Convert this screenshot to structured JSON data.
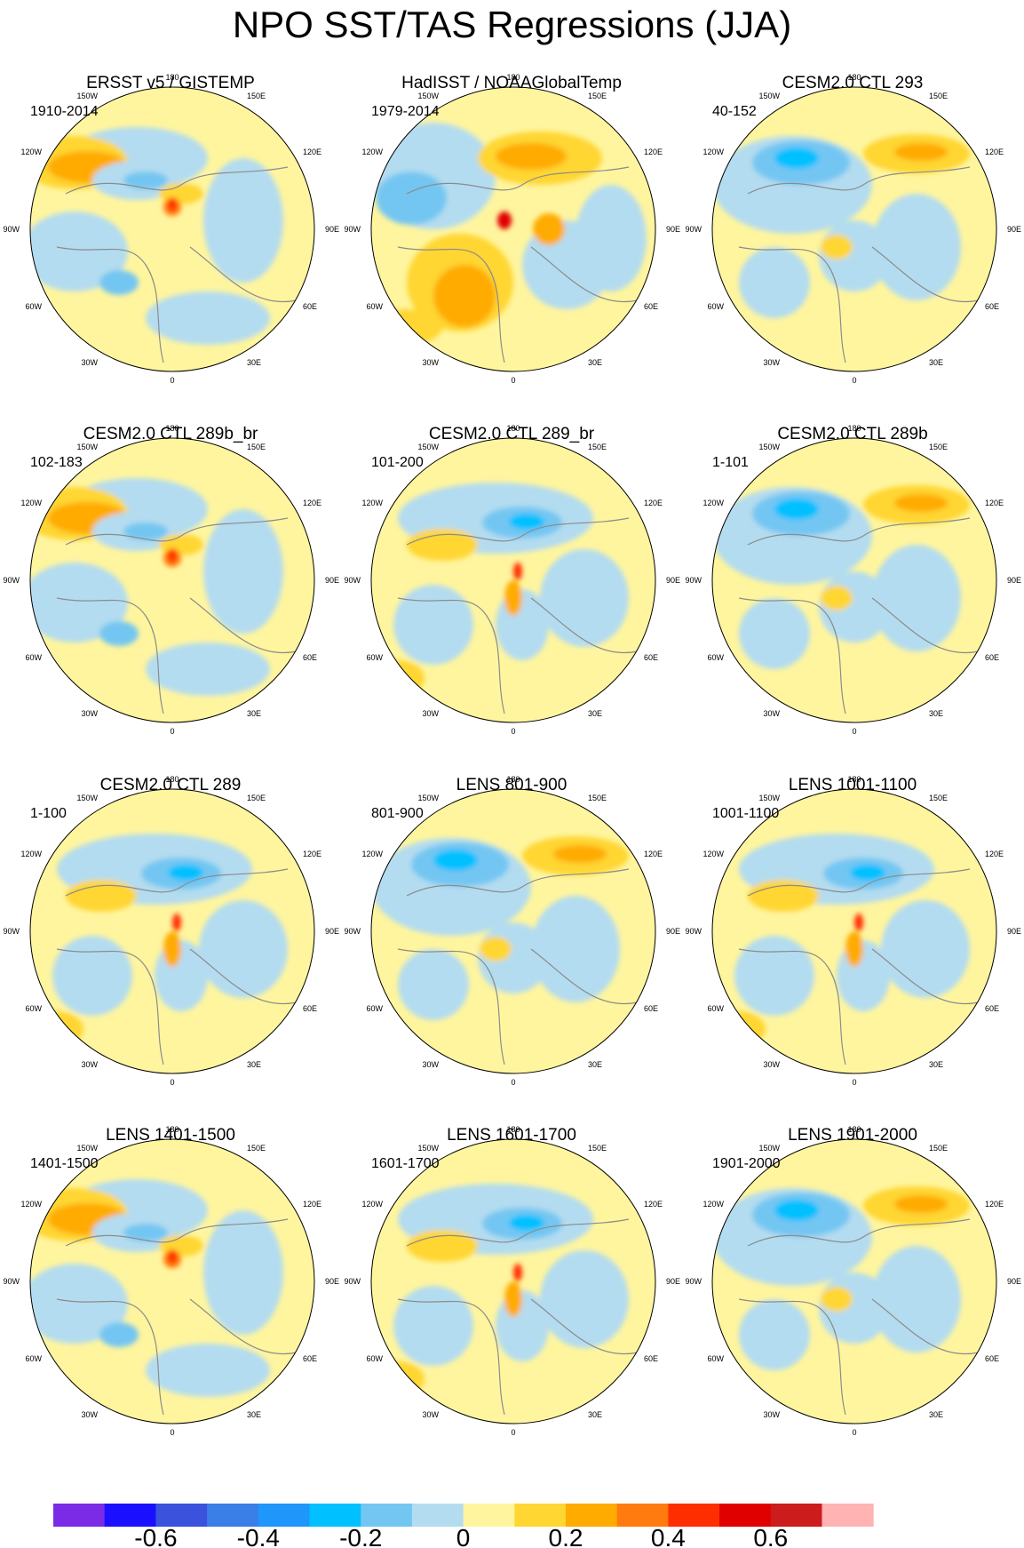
{
  "title": "NPO SST/TAS Regressions (JJA)",
  "colors": {
    "land_outline": "#8c8c8c",
    "circle_outline": "#000000",
    "missing": "#ffffff"
  },
  "palette": [
    "#7b2be6",
    "#1a10ff",
    "#3a52dc",
    "#3a7ee8",
    "#1e96fa",
    "#00c0ff",
    "#73c6f2",
    "#b3dcf0",
    "#fff59e",
    "#ffd632",
    "#ffab00",
    "#ff7b10",
    "#ff2e00",
    "#e00000",
    "#cc1c1c",
    "#ffb3b3"
  ],
  "colorbar": {
    "labels": [
      "-0.6",
      "-0.4",
      "-0.2",
      "0",
      "0.2",
      "0.4",
      "0.6"
    ],
    "levels": [
      -0.7,
      -0.6,
      -0.5,
      -0.4,
      -0.3,
      -0.2,
      -0.1,
      0,
      0.1,
      0.2,
      0.3,
      0.4,
      0.5,
      0.6,
      0.7
    ]
  },
  "axis_labels": {
    "top": "180",
    "bottom": "0",
    "left": "90W",
    "right": "90E",
    "upper_left": "150W",
    "upper_right": "150E",
    "mid_upper_left": "120W",
    "mid_upper_right": "120E",
    "mid_lower_left": "60W",
    "mid_lower_right": "60E",
    "lower_left": "30W",
    "lower_right": "30E"
  },
  "panels": [
    {
      "title": "ERSST v5 / GISTEMP",
      "period": "1910-2014",
      "pattern": 1
    },
    {
      "title": "HadISST / NOAAGlobalTemp",
      "period": "1979-2014",
      "pattern": 2
    },
    {
      "title": "CESM2.0 CTL 293",
      "period": "40-152",
      "pattern": 3
    },
    {
      "title": "CESM2.0 CTL 289b_br",
      "period": "102-183",
      "pattern": 1
    },
    {
      "title": "CESM2.0 CTL 289_br",
      "period": "101-200",
      "pattern": 4
    },
    {
      "title": "CESM2.0 CTL 289b",
      "period": "1-101",
      "pattern": 3
    },
    {
      "title": "CESM2.0 CTL 289",
      "period": "1-100",
      "pattern": 4
    },
    {
      "title": "LENS 801-900",
      "period": "801-900",
      "pattern": 3
    },
    {
      "title": "LENS 1001-1100",
      "period": "1001-1100",
      "pattern": 4
    },
    {
      "title": "LENS 1401-1500",
      "period": "1401-1500",
      "pattern": 1
    },
    {
      "title": "LENS 1601-1700",
      "period": "1601-1700",
      "pattern": 4
    },
    {
      "title": "LENS 1901-2000",
      "period": "1901-2000",
      "pattern": 3
    }
  ]
}
